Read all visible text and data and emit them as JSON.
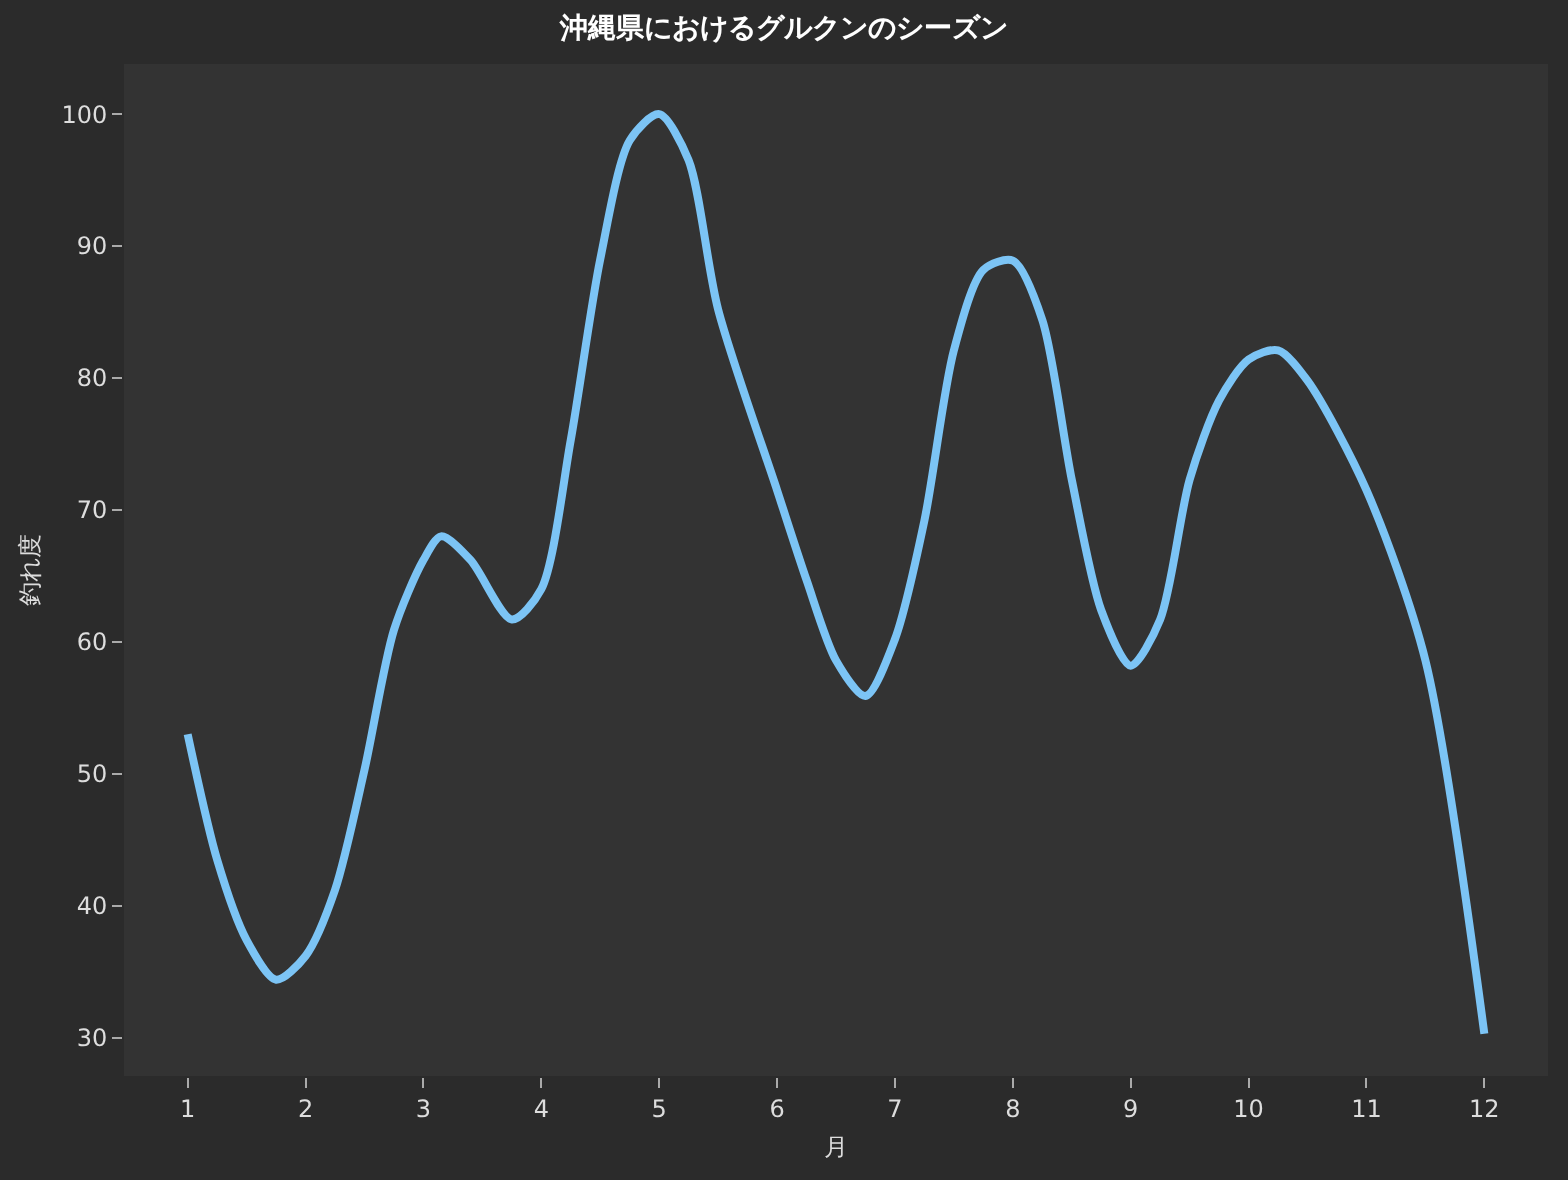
{
  "chart_data": {
    "type": "line",
    "title": "沖縄県におけるグルクンのシーズン",
    "xlabel": "月",
    "ylabel": "釣れ度",
    "x": [
      1,
      1.25,
      1.5,
      1.75,
      2,
      2.25,
      2.5,
      2.75,
      3,
      3.15,
      3.4,
      3.75,
      4,
      4.25,
      4.5,
      4.75,
      5,
      5.25,
      5.5,
      6,
      6.25,
      6.5,
      6.75,
      7,
      7.25,
      7.5,
      7.75,
      8,
      8.25,
      8.5,
      8.75,
      9,
      9.25,
      9.5,
      9.75,
      10,
      10.25,
      10.5,
      11,
      11.5,
      12
    ],
    "series": [
      {
        "color": "#7cc4f5",
        "values": [
          53,
          43.5,
          37.4,
          34.4,
          36.2,
          41.2,
          50.3,
          60.9,
          66.2,
          68,
          66.2,
          61.7,
          64,
          75.3,
          89,
          98,
          100,
          96.5,
          85.2,
          71.5,
          64.7,
          58.6,
          55.9,
          60.2,
          69.2,
          82.1,
          88.2,
          88.9,
          84.4,
          72.3,
          62.4,
          58.2,
          61.7,
          72.3,
          78.3,
          81.4,
          82.1,
          79.8,
          71.5,
          58.6,
          30.3
        ]
      }
    ],
    "xlim": [
      0.46,
      12.54
    ],
    "xticks": [
      1,
      2,
      3,
      4,
      5,
      6,
      7,
      8,
      9,
      10,
      11,
      12
    ],
    "ylim": [
      27.1,
      103.8
    ],
    "yticks": [
      30,
      40,
      50,
      60,
      70,
      80,
      90,
      100
    ],
    "grid": false,
    "marker": "none",
    "line_style": "solid"
  }
}
